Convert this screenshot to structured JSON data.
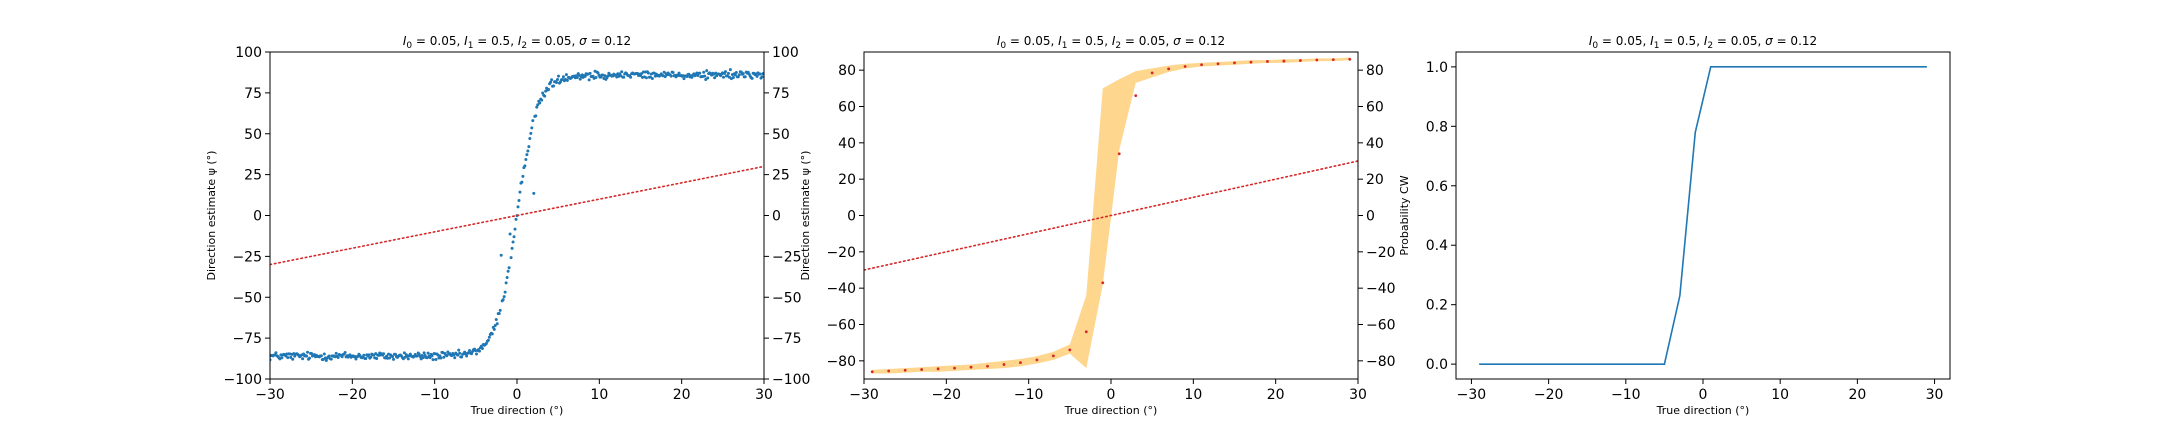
{
  "chart_data": [
    {
      "type": "scatter",
      "title_parts": {
        "I0": "0.05",
        "I1": "0.5",
        "I2": "0.05",
        "sigma": "0.12"
      },
      "xlabel": "True direction (°)",
      "ylabel": "Direction estimate ψ (°)",
      "xlim": [
        -30,
        30
      ],
      "ylim": [
        -100,
        100
      ],
      "xticks": [
        -30,
        -20,
        -10,
        0,
        10,
        20,
        30
      ],
      "yticks": [
        -100,
        -75,
        -50,
        -25,
        0,
        25,
        50,
        75,
        100
      ],
      "right_axis": true,
      "series": [
        {
          "kind": "points",
          "sigmoid": {
            "low": -86,
            "high": 86,
            "center": 0,
            "scale": 1.25,
            "x_step": 0.12,
            "noise_sd": 1.2
          },
          "color": "#1f77b4"
        },
        {
          "kind": "identity-line",
          "x": [
            -30,
            30
          ],
          "y": [
            -30,
            30
          ],
          "color": "#d62728",
          "style": "dotted"
        }
      ]
    },
    {
      "type": "line",
      "title_parts": {
        "I0": "0.05",
        "I1": "0.5",
        "I2": "0.05",
        "sigma": "0.12"
      },
      "xlabel": "True direction (°)",
      "ylabel": "Direction estimate ψ (°)",
      "xlim": [
        -30,
        30
      ],
      "ylim": [
        -90,
        90
      ],
      "xticks": [
        -30,
        -20,
        -10,
        0,
        10,
        20,
        30
      ],
      "yticks": [
        -80,
        -60,
        -40,
        -20,
        0,
        20,
        40,
        60,
        80
      ],
      "right_axis": true,
      "series": [
        {
          "kind": "band",
          "color": "#fdb42f",
          "x": [
            -29,
            -27,
            -25,
            -23,
            -21,
            -19,
            -17,
            -15,
            -13,
            -11,
            -9,
            -7,
            -5,
            -3,
            -1,
            1,
            3,
            5,
            7,
            9,
            11,
            13,
            15,
            17,
            19,
            21,
            23,
            25,
            27,
            29
          ],
          "lower": [
            -87,
            -87,
            -86.5,
            -86,
            -86,
            -85.5,
            -85,
            -84.5,
            -84,
            -83,
            -81.5,
            -79.5,
            -76,
            -84,
            -38,
            36,
            73,
            76,
            79,
            81,
            82,
            82.5,
            83,
            83.5,
            84,
            84,
            84.5,
            85,
            85,
            85.5
          ],
          "upper": [
            -85,
            -84.5,
            -84,
            -83.5,
            -83,
            -82.5,
            -82,
            -81,
            -80,
            -79,
            -77.5,
            -75,
            -71,
            -44,
            70,
            75,
            79.5,
            81,
            82.5,
            83.5,
            84,
            84.5,
            85,
            85.5,
            85.5,
            86,
            86,
            86.5,
            86.5,
            87
          ]
        },
        {
          "kind": "mean-points",
          "color": "#d62728",
          "x": [
            -29,
            -27,
            -25,
            -23,
            -21,
            -19,
            -17,
            -15,
            -13,
            -11,
            -9,
            -7,
            -5,
            -3,
            -1,
            1,
            3,
            5,
            7,
            9,
            11,
            13,
            15,
            17,
            19,
            21,
            23,
            25,
            27,
            29
          ],
          "y": [
            -86,
            -85.6,
            -85.2,
            -84.8,
            -84.4,
            -84,
            -83.5,
            -83,
            -82,
            -81,
            -79.5,
            -77.3,
            -74,
            -64,
            -37,
            34,
            66,
            78.5,
            80.7,
            82,
            83,
            83.5,
            84,
            84.4,
            84.8,
            85,
            85.3,
            85.6,
            85.8,
            86
          ]
        },
        {
          "kind": "identity-line",
          "x": [
            -30,
            30
          ],
          "y": [
            -30,
            30
          ],
          "color": "#d62728",
          "style": "dotted"
        }
      ]
    },
    {
      "type": "line",
      "title_parts": {
        "I0": "0.05",
        "I1": "0.5",
        "I2": "0.05",
        "sigma": "0.12"
      },
      "xlabel": "True direction (°)",
      "ylabel": "Probability CW",
      "xlim": [
        -32,
        32
      ],
      "ylim": [
        -0.05,
        1.05
      ],
      "xticks": [
        -30,
        -20,
        -10,
        0,
        10,
        20,
        30
      ],
      "yticks": [
        0.0,
        0.2,
        0.4,
        0.6,
        0.8,
        1.0
      ],
      "ytick_format": 1,
      "right_axis": false,
      "series": [
        {
          "kind": "line",
          "color": "#1f77b4",
          "x": [
            -29,
            -27,
            -25,
            -23,
            -21,
            -19,
            -17,
            -15,
            -13,
            -11,
            -9,
            -7,
            -5,
            -3,
            -1,
            1,
            3,
            5,
            7,
            9,
            11,
            13,
            15,
            17,
            19,
            21,
            23,
            25,
            27,
            29
          ],
          "y": [
            0,
            0,
            0,
            0,
            0,
            0,
            0,
            0,
            0,
            0,
            0,
            0,
            0,
            0.23,
            0.78,
            1,
            1,
            1,
            1,
            1,
            1,
            1,
            1,
            1,
            1,
            1,
            1,
            1,
            1,
            1
          ]
        }
      ]
    }
  ]
}
